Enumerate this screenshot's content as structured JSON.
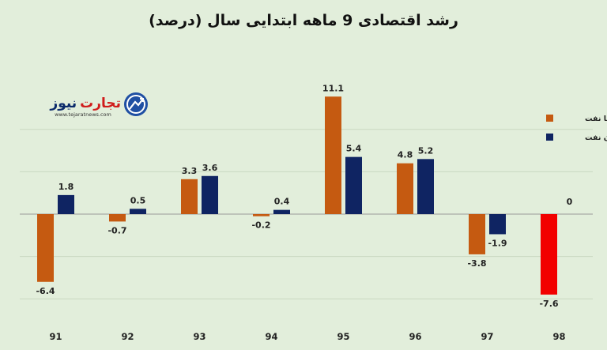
{
  "logo": {
    "brand_red": "تجارت",
    "brand_blue": "نیوز",
    "url": "www.tejaratnews.com"
  },
  "chart_data": {
    "type": "bar",
    "title": "رشد اقتصادی 9 ماهه ابتدایی سال (درصد)",
    "categories": [
      "91",
      "92",
      "93",
      "94",
      "95",
      "96",
      "97",
      "98"
    ],
    "series": [
      {
        "name": "با نفت",
        "color": "#c55a11",
        "values": [
          -6.4,
          -0.7,
          3.3,
          -0.2,
          11.1,
          4.8,
          -3.8,
          -7.6
        ],
        "labels": [
          "-6.4",
          "-0.7",
          "3.3",
          "-0.2",
          "11.1",
          "4.8",
          "-3.8",
          "-7.6"
        ]
      },
      {
        "name": "بدون نفت",
        "color": "#0f2462",
        "values": [
          1.8,
          0.5,
          3.6,
          0.4,
          5.4,
          5.2,
          -1.9,
          0
        ],
        "labels": [
          "1.8",
          "0.5",
          "3.6",
          "0.4",
          "5.4",
          "5.2",
          "-1.9",
          "0"
        ]
      }
    ],
    "highlight": {
      "category": "98",
      "series": "با نفت",
      "color": "#f20000"
    },
    "ylim": [
      -8,
      12
    ],
    "grid": true,
    "legend_position": "right"
  }
}
